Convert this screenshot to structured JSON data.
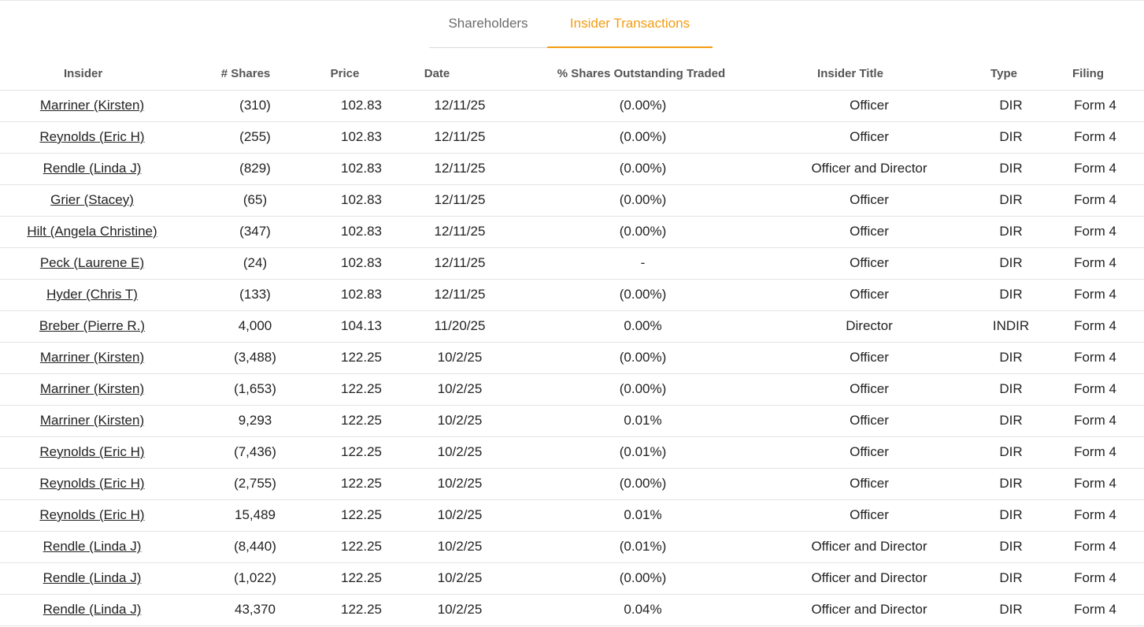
{
  "tabs": {
    "shareholders": "Shareholders",
    "insider_transactions": "Insider Transactions"
  },
  "colors": {
    "accent": "#f39c12",
    "negative": "#e0473a"
  },
  "columns": [
    "Insider",
    "# Shares",
    "Price",
    "Date",
    "% Shares Outstanding Traded",
    "Insider Title",
    "Type",
    "Filing"
  ],
  "rows": [
    {
      "insider": "Marriner (Kirsten)",
      "shares": "(310)",
      "neg": true,
      "price": "102.83",
      "date": "12/11/25",
      "pct": "(0.00%)",
      "pct_neg": true,
      "title": "Officer",
      "type": "DIR",
      "filing": "Form 4"
    },
    {
      "insider": "Reynolds (Eric H)",
      "shares": "(255)",
      "neg": true,
      "price": "102.83",
      "date": "12/11/25",
      "pct": "(0.00%)",
      "pct_neg": true,
      "title": "Officer",
      "type": "DIR",
      "filing": "Form 4"
    },
    {
      "insider": "Rendle (Linda J)",
      "shares": "(829)",
      "neg": true,
      "price": "102.83",
      "date": "12/11/25",
      "pct": "(0.00%)",
      "pct_neg": true,
      "title": "Officer and Director",
      "type": "DIR",
      "filing": "Form 4"
    },
    {
      "insider": "Grier (Stacey)",
      "shares": "(65)",
      "neg": true,
      "price": "102.83",
      "date": "12/11/25",
      "pct": "(0.00%)",
      "pct_neg": true,
      "title": "Officer",
      "type": "DIR",
      "filing": "Form 4"
    },
    {
      "insider": "Hilt (Angela Christine)",
      "shares": "(347)",
      "neg": true,
      "price": "102.83",
      "date": "12/11/25",
      "pct": "(0.00%)",
      "pct_neg": true,
      "title": "Officer",
      "type": "DIR",
      "filing": "Form 4"
    },
    {
      "insider": "Peck (Laurene E)",
      "shares": "(24)",
      "neg": true,
      "price": "102.83",
      "date": "12/11/25",
      "pct": "-",
      "pct_neg": false,
      "title": "Officer",
      "type": "DIR",
      "filing": "Form 4"
    },
    {
      "insider": "Hyder (Chris T)",
      "shares": "(133)",
      "neg": true,
      "price": "102.83",
      "date": "12/11/25",
      "pct": "(0.00%)",
      "pct_neg": true,
      "title": "Officer",
      "type": "DIR",
      "filing": "Form 4"
    },
    {
      "insider": "Breber (Pierre R.)",
      "shares": "4,000",
      "neg": false,
      "price": "104.13",
      "date": "11/20/25",
      "pct": "0.00%",
      "pct_neg": false,
      "title": "Director",
      "type": "INDIR",
      "filing": "Form 4"
    },
    {
      "insider": "Marriner (Kirsten)",
      "shares": "(3,488)",
      "neg": true,
      "price": "122.25",
      "date": "10/2/25",
      "pct": "(0.00%)",
      "pct_neg": true,
      "title": "Officer",
      "type": "DIR",
      "filing": "Form 4"
    },
    {
      "insider": "Marriner (Kirsten)",
      "shares": "(1,653)",
      "neg": true,
      "price": "122.25",
      "date": "10/2/25",
      "pct": "(0.00%)",
      "pct_neg": true,
      "title": "Officer",
      "type": "DIR",
      "filing": "Form 4"
    },
    {
      "insider": "Marriner (Kirsten)",
      "shares": "9,293",
      "neg": false,
      "price": "122.25",
      "date": "10/2/25",
      "pct": "0.01%",
      "pct_neg": false,
      "title": "Officer",
      "type": "DIR",
      "filing": "Form 4"
    },
    {
      "insider": "Reynolds (Eric H)",
      "shares": "(7,436)",
      "neg": true,
      "price": "122.25",
      "date": "10/2/25",
      "pct": "(0.01%)",
      "pct_neg": true,
      "title": "Officer",
      "type": "DIR",
      "filing": "Form 4"
    },
    {
      "insider": "Reynolds (Eric H)",
      "shares": "(2,755)",
      "neg": true,
      "price": "122.25",
      "date": "10/2/25",
      "pct": "(0.00%)",
      "pct_neg": true,
      "title": "Officer",
      "type": "DIR",
      "filing": "Form 4"
    },
    {
      "insider": "Reynolds (Eric H)",
      "shares": "15,489",
      "neg": false,
      "price": "122.25",
      "date": "10/2/25",
      "pct": "0.01%",
      "pct_neg": false,
      "title": "Officer",
      "type": "DIR",
      "filing": "Form 4"
    },
    {
      "insider": "Rendle (Linda J)",
      "shares": "(8,440)",
      "neg": true,
      "price": "122.25",
      "date": "10/2/25",
      "pct": "(0.01%)",
      "pct_neg": true,
      "title": "Officer and Director",
      "type": "DIR",
      "filing": "Form 4"
    },
    {
      "insider": "Rendle (Linda J)",
      "shares": "(1,022)",
      "neg": true,
      "price": "122.25",
      "date": "10/2/25",
      "pct": "(0.00%)",
      "pct_neg": true,
      "title": "Officer and Director",
      "type": "DIR",
      "filing": "Form 4"
    },
    {
      "insider": "Rendle (Linda J)",
      "shares": "43,370",
      "neg": false,
      "price": "122.25",
      "date": "10/2/25",
      "pct": "0.04%",
      "pct_neg": false,
      "title": "Officer and Director",
      "type": "DIR",
      "filing": "Form 4"
    }
  ]
}
